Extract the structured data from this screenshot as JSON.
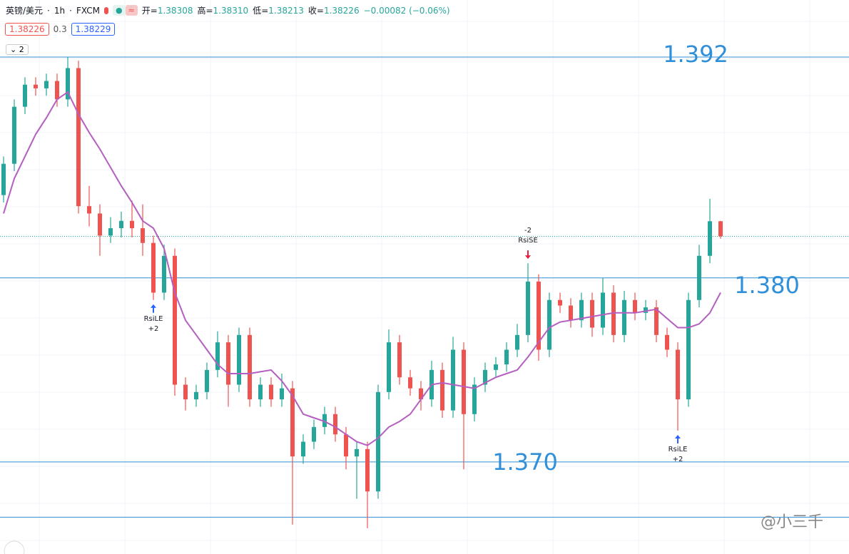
{
  "header": {
    "symbol": "英镑/美元",
    "interval": "1h",
    "source": "FXCM",
    "open_label": "开",
    "open": "1.38308",
    "high_label": "高",
    "high": "1.38310",
    "low_label": "低",
    "low": "1.38213",
    "close_label": "收",
    "close": "1.38226",
    "change": "−0.00082 (−0.06%)",
    "bid": "1.38226",
    "spread": "0.3",
    "ask": "1.38229",
    "layers": "2"
  },
  "chart_data": {
    "type": "candlestick",
    "ylim": [
      1.365,
      1.3951
    ],
    "up_color": "#26a69a",
    "down_color": "#ef5350",
    "ma_color": "#b45fc0",
    "level_color": "#2f8fd8",
    "candles": {
      "open": [
        1.3845,
        1.3862,
        1.3893,
        1.3905,
        1.3903,
        1.3907,
        1.3897,
        1.3914,
        1.3839,
        1.3835,
        1.3823,
        1.3827,
        1.3831,
        1.3827,
        1.3819,
        1.3792,
        1.3812,
        1.3742,
        1.3734,
        1.3738,
        1.375,
        1.3765,
        1.3742,
        1.3769,
        1.3734,
        1.3742,
        1.3734,
        1.374,
        1.3703,
        1.3711,
        1.3719,
        1.3726,
        1.3715,
        1.3703,
        1.3707,
        1.3684,
        1.3738,
        1.3765,
        1.3746,
        1.374,
        1.3734,
        1.375,
        1.3728,
        1.3761,
        1.3726,
        1.3742,
        1.375,
        1.3753,
        1.3761,
        1.3769,
        1.3798,
        1.3761,
        1.3788,
        1.3785,
        1.3777,
        1.3788,
        1.3773,
        1.3792,
        1.3769,
        1.3788,
        1.3781,
        1.3784,
        1.3769,
        1.3761,
        1.3734,
        1.3788,
        1.3812,
        1.38308
      ],
      "high": [
        1.3866,
        1.3897,
        1.3909,
        1.3909,
        1.3911,
        1.3911,
        1.392,
        1.3918,
        1.385,
        1.384,
        1.3833,
        1.3836,
        1.3842,
        1.384,
        1.3823,
        1.3818,
        1.3816,
        1.3746,
        1.3742,
        1.3754,
        1.3771,
        1.3769,
        1.3773,
        1.3773,
        1.3746,
        1.3746,
        1.3748,
        1.3744,
        1.3715,
        1.3723,
        1.373,
        1.373,
        1.3719,
        1.3711,
        1.3711,
        1.3742,
        1.3772,
        1.3769,
        1.375,
        1.3744,
        1.3755,
        1.3754,
        1.3768,
        1.3765,
        1.3746,
        1.3754,
        1.3757,
        1.3765,
        1.3775,
        1.3808,
        1.3802,
        1.3792,
        1.3792,
        1.3789,
        1.3792,
        1.3792,
        1.38,
        1.3796,
        1.3793,
        1.3792,
        1.3788,
        1.3788,
        1.3773,
        1.3765,
        1.3792,
        1.3818,
        1.3843,
        1.3831
      ],
      "low": [
        1.3841,
        1.3858,
        1.3889,
        1.3899,
        1.3899,
        1.3893,
        1.3893,
        1.3835,
        1.3828,
        1.3812,
        1.3819,
        1.3822,
        1.3822,
        1.3812,
        1.3788,
        1.3788,
        1.3736,
        1.3728,
        1.373,
        1.3734,
        1.3746,
        1.373,
        1.3738,
        1.373,
        1.373,
        1.373,
        1.373,
        1.3666,
        1.3699,
        1.3707,
        1.3715,
        1.3711,
        1.3696,
        1.368,
        1.3664,
        1.368,
        1.3734,
        1.3742,
        1.3736,
        1.3728,
        1.373,
        1.3724,
        1.3724,
        1.3696,
        1.3722,
        1.3738,
        1.3746,
        1.3749,
        1.3757,
        1.3765,
        1.3755,
        1.3757,
        1.3781,
        1.3773,
        1.3773,
        1.3768,
        1.3769,
        1.3765,
        1.3765,
        1.3777,
        1.3777,
        1.3765,
        1.3757,
        1.3717,
        1.373,
        1.3784,
        1.3808,
        1.38213
      ],
      "close": [
        1.3862,
        1.3893,
        1.3905,
        1.3903,
        1.3907,
        1.3897,
        1.3914,
        1.3839,
        1.3835,
        1.3823,
        1.3827,
        1.3831,
        1.3827,
        1.3819,
        1.3792,
        1.3812,
        1.3742,
        1.3734,
        1.3738,
        1.375,
        1.3765,
        1.3742,
        1.3769,
        1.3734,
        1.3742,
        1.3734,
        1.374,
        1.3703,
        1.3711,
        1.3719,
        1.3726,
        1.3715,
        1.3703,
        1.3707,
        1.3684,
        1.3738,
        1.3765,
        1.3746,
        1.374,
        1.3734,
        1.375,
        1.3728,
        1.3761,
        1.3726,
        1.3742,
        1.375,
        1.3753,
        1.3761,
        1.3769,
        1.3798,
        1.3761,
        1.3788,
        1.3785,
        1.3777,
        1.3788,
        1.3773,
        1.3792,
        1.3769,
        1.3788,
        1.3781,
        1.3784,
        1.3769,
        1.3761,
        1.3734,
        1.3788,
        1.3812,
        1.38308,
        1.38226
      ]
    },
    "ma": [
      1.3835,
      1.3854,
      1.3866,
      1.3878,
      1.3887,
      1.3897,
      1.3901,
      1.3889,
      1.3879,
      1.387,
      1.386,
      1.385,
      1.3841,
      1.3831,
      1.3827,
      1.3816,
      1.3792,
      1.3777,
      1.3769,
      1.3761,
      1.3753,
      1.3748,
      1.3748,
      1.3748,
      1.3749,
      1.375,
      1.3744,
      1.3736,
      1.3726,
      1.3724,
      1.3722,
      1.3719,
      1.3715,
      1.3711,
      1.3709,
      1.3713,
      1.3719,
      1.3722,
      1.3726,
      1.3734,
      1.3742,
      1.3743,
      1.3742,
      1.3741,
      1.374,
      1.3743,
      1.3746,
      1.3748,
      1.375,
      1.3757,
      1.3765,
      1.3773,
      1.3776,
      1.3777,
      1.3778,
      1.3779,
      1.378,
      1.3781,
      1.3781,
      1.3781,
      1.3782,
      1.3783,
      1.3778,
      1.3773,
      1.3773,
      1.3775,
      1.3781,
      1.3792
    ],
    "levels": [
      {
        "value": 1.392,
        "label": "1.392"
      },
      {
        "value": 1.38,
        "label": "1.380"
      },
      {
        "value": 1.37,
        "label": "1.370"
      },
      {
        "value": 1.367
      }
    ],
    "signals": [
      {
        "label": "RsiLE",
        "qty": "+2"
      },
      {
        "label": "RsiSE",
        "qty": "-2"
      },
      {
        "label": "RsiLE",
        "qty": "+2"
      }
    ],
    "watermark": "@小三千"
  }
}
